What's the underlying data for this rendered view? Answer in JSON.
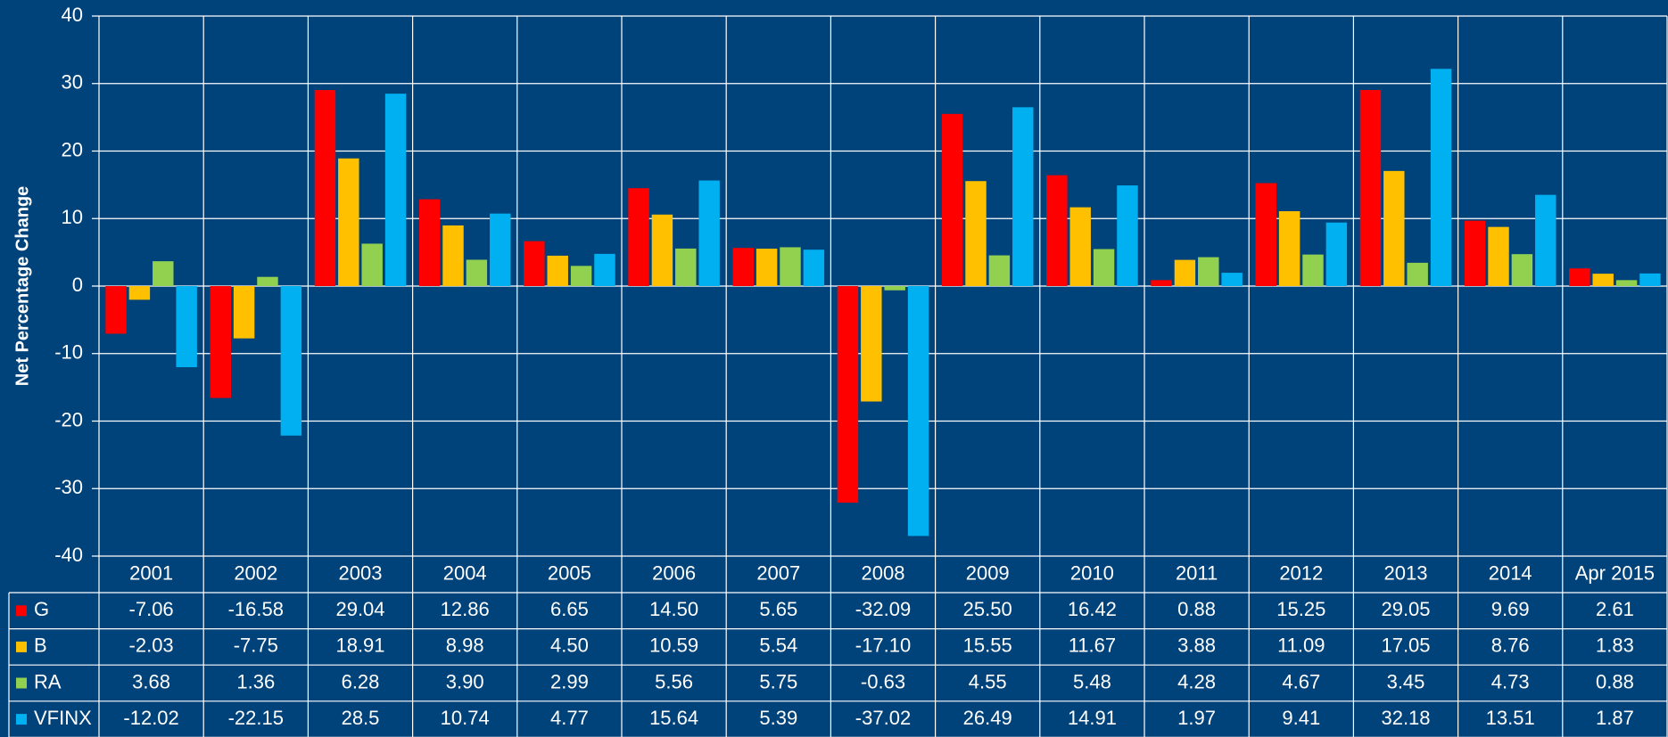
{
  "chart_data": {
    "type": "bar",
    "y_label": "Net Percentage Change",
    "categories": [
      "2001",
      "2002",
      "2003",
      "2004",
      "2005",
      "2006",
      "2007",
      "2008",
      "2009",
      "2010",
      "2011",
      "2012",
      "2013",
      "2014",
      "Apr 2015"
    ],
    "series": [
      {
        "name": "G",
        "color": "#ff0000",
        "values": [
          -7.06,
          -16.58,
          29.04,
          12.86,
          6.65,
          14.5,
          5.65,
          -32.09,
          25.5,
          16.42,
          0.88,
          15.25,
          29.05,
          9.69,
          2.61
        ],
        "value_labels": [
          "-7.06",
          "-16.58",
          "29.04",
          "12.86",
          "6.65",
          "14.50",
          "5.65",
          "-32.09",
          "25.50",
          "16.42",
          "0.88",
          "15.25",
          "29.05",
          "9.69",
          "2.61"
        ]
      },
      {
        "name": "B",
        "color": "#ffc000",
        "values": [
          -2.03,
          -7.75,
          18.91,
          8.98,
          4.5,
          10.59,
          5.54,
          -17.1,
          15.55,
          11.67,
          3.88,
          11.09,
          17.05,
          8.76,
          1.83
        ],
        "value_labels": [
          "-2.03",
          "-7.75",
          "18.91",
          "8.98",
          "4.50",
          "10.59",
          "5.54",
          "-17.10",
          "15.55",
          "11.67",
          "3.88",
          "11.09",
          "17.05",
          "8.76",
          "1.83"
        ]
      },
      {
        "name": "RA",
        "color": "#92d050",
        "values": [
          3.68,
          1.36,
          6.28,
          3.9,
          2.99,
          5.56,
          5.75,
          -0.63,
          4.55,
          5.48,
          4.28,
          4.67,
          3.45,
          4.73,
          0.88
        ],
        "value_labels": [
          "3.68",
          "1.36",
          "6.28",
          "3.90",
          "2.99",
          "5.56",
          "5.75",
          "-0.63",
          "4.55",
          "5.48",
          "4.28",
          "4.67",
          "3.45",
          "4.73",
          "0.88"
        ]
      },
      {
        "name": "VFINX",
        "color": "#00b0f0",
        "values": [
          -12.02,
          -22.15,
          28.5,
          10.74,
          4.77,
          15.64,
          5.39,
          -37.02,
          26.49,
          14.91,
          1.97,
          9.41,
          32.18,
          13.51,
          1.87
        ],
        "value_labels": [
          "-12.02",
          "-22.15",
          "28.5",
          "10.74",
          "4.77",
          "15.64",
          "5.39",
          "-37.02",
          "26.49",
          "14.91",
          "1.97",
          "9.41",
          "32.18",
          "13.51",
          "1.87"
        ]
      }
    ],
    "ylim": [
      -40,
      40
    ],
    "yticks": [
      -40,
      -30,
      -20,
      -10,
      0,
      10,
      20,
      30,
      40
    ],
    "grid": true
  }
}
